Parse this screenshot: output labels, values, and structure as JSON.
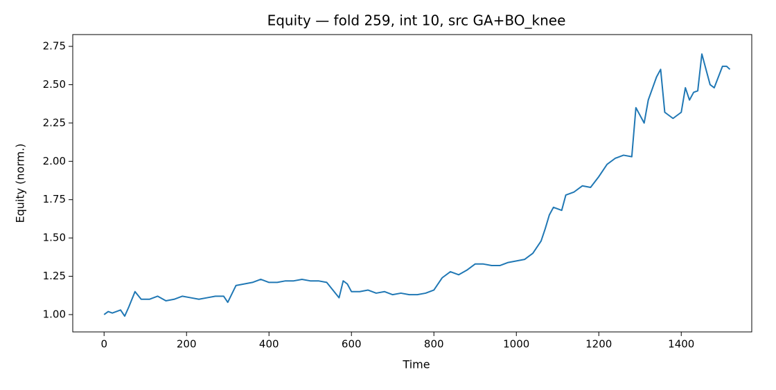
{
  "chart_data": {
    "type": "line",
    "title": "Equity — fold 259, int 10, src GA+BO_knee",
    "xlabel": "Time",
    "ylabel": "Equity (norm.)",
    "x": [
      0,
      10,
      20,
      40,
      50,
      60,
      75,
      90,
      110,
      130,
      150,
      170,
      190,
      210,
      230,
      250,
      270,
      290,
      300,
      320,
      340,
      360,
      380,
      400,
      420,
      440,
      460,
      480,
      500,
      520,
      540,
      555,
      570,
      580,
      590,
      600,
      620,
      640,
      660,
      680,
      700,
      720,
      740,
      760,
      780,
      800,
      820,
      840,
      860,
      880,
      900,
      920,
      940,
      960,
      980,
      1000,
      1020,
      1040,
      1060,
      1070,
      1080,
      1090,
      1110,
      1120,
      1140,
      1160,
      1180,
      1200,
      1220,
      1240,
      1260,
      1280,
      1290,
      1300,
      1310,
      1320,
      1340,
      1350,
      1360,
      1380,
      1400,
      1410,
      1420,
      1430,
      1440,
      1450,
      1460,
      1470,
      1480,
      1490,
      1500,
      1510,
      1518
    ],
    "series": [
      {
        "name": "Equity",
        "color": "#1f77b4",
        "values": [
          1.0,
          1.02,
          1.01,
          1.03,
          0.99,
          1.05,
          1.15,
          1.1,
          1.1,
          1.12,
          1.09,
          1.1,
          1.12,
          1.11,
          1.1,
          1.11,
          1.12,
          1.12,
          1.08,
          1.19,
          1.2,
          1.21,
          1.23,
          1.21,
          1.21,
          1.22,
          1.22,
          1.23,
          1.22,
          1.22,
          1.21,
          1.16,
          1.11,
          1.22,
          1.2,
          1.15,
          1.15,
          1.16,
          1.14,
          1.15,
          1.13,
          1.14,
          1.13,
          1.13,
          1.14,
          1.16,
          1.24,
          1.28,
          1.26,
          1.29,
          1.33,
          1.33,
          1.32,
          1.32,
          1.34,
          1.35,
          1.36,
          1.4,
          1.48,
          1.56,
          1.65,
          1.7,
          1.68,
          1.78,
          1.8,
          1.84,
          1.83,
          1.9,
          1.98,
          2.02,
          2.04,
          2.03,
          2.35,
          2.3,
          2.25,
          2.4,
          2.55,
          2.6,
          2.32,
          2.28,
          2.32,
          2.48,
          2.4,
          2.45,
          2.46,
          2.7,
          2.6,
          2.5,
          2.48,
          2.55,
          2.62,
          2.62,
          2.6
        ]
      }
    ],
    "xlim": [
      -76,
      1571
    ],
    "ylim": [
      0.887,
      2.827
    ],
    "xticks": [
      0,
      200,
      400,
      600,
      800,
      1000,
      1200,
      1400
    ],
    "yticks": [
      {
        "value": 1,
        "label": "1.00"
      },
      {
        "value": 1.25,
        "label": "1.25"
      },
      {
        "value": 1.5,
        "label": "1.50"
      },
      {
        "value": 1.75,
        "label": "1.75"
      },
      {
        "value": 2,
        "label": "2.00"
      },
      {
        "value": 2.25,
        "label": "2.25"
      },
      {
        "value": 2.5,
        "label": "2.50"
      },
      {
        "value": 2.75,
        "label": "2.75"
      }
    ]
  }
}
